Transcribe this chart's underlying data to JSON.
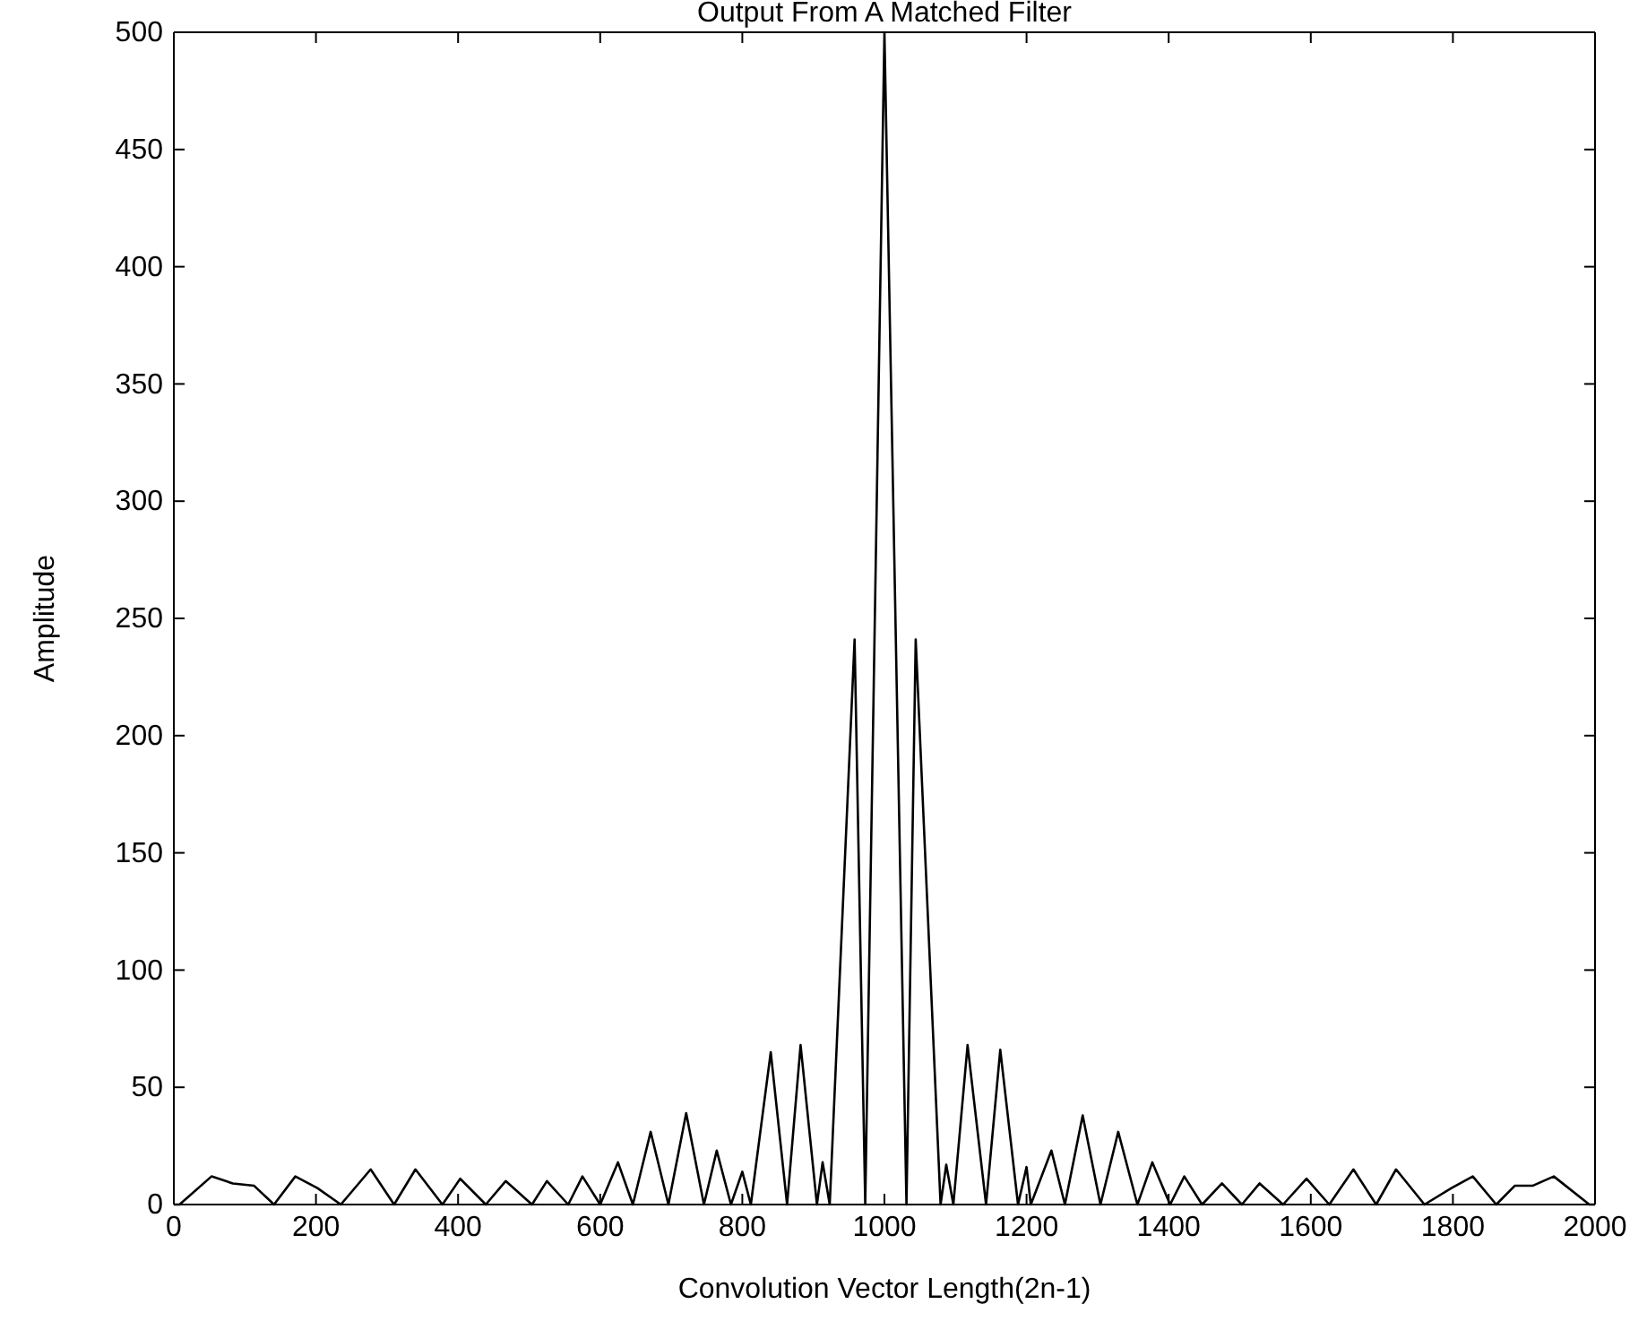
{
  "chart_data": {
    "type": "line",
    "title": "Output From A Matched Filter",
    "xlabel": "Convolution Vector Length(2n-1)",
    "ylabel": "Amplitude",
    "xlim": [
      0,
      2000
    ],
    "xticks": [
      0,
      200,
      400,
      600,
      800,
      1000,
      1200,
      1400,
      1600,
      1800,
      2000
    ],
    "ylim": [
      0,
      500
    ],
    "yticks": [
      0,
      50,
      100,
      150,
      200,
      250,
      300,
      350,
      400,
      450,
      500
    ],
    "grid": false,
    "series": [
      {
        "color": "#000000",
        "x": [
          0,
          8,
          53,
          83,
          113,
          141,
          171,
          202,
          235,
          277,
          310,
          340,
          378,
          403,
          439,
          467,
          504,
          525,
          555,
          575,
          600,
          625,
          646,
          671,
          696,
          721,
          746,
          764,
          784,
          800,
          812,
          840,
          863,
          882,
          905,
          913,
          923,
          958,
          973,
          1000,
          1031,
          1044,
          1079,
          1087,
          1097,
          1117,
          1143,
          1163,
          1188,
          1200,
          1206,
          1235,
          1254,
          1279,
          1304,
          1329,
          1356,
          1377,
          1402,
          1422,
          1447,
          1475,
          1503,
          1528,
          1561,
          1594,
          1626,
          1660,
          1692,
          1720,
          1760,
          1798,
          1828,
          1861,
          1887,
          1912,
          1942,
          1992,
          2000
        ],
        "values": [
          0,
          0,
          12,
          9,
          8,
          0,
          12,
          7,
          0,
          15,
          0,
          15,
          0,
          11,
          0,
          10,
          0,
          10,
          0,
          12,
          0,
          18,
          0,
          31,
          0,
          39,
          0,
          23,
          0,
          14,
          0,
          65,
          0,
          68,
          0,
          18,
          0,
          241,
          0,
          500,
          0,
          241,
          0,
          17,
          0,
          68,
          0,
          66,
          0,
          16,
          0,
          23,
          0,
          38,
          0,
          31,
          0,
          18,
          0,
          12,
          0,
          9,
          0,
          9,
          0,
          11,
          0,
          15,
          0,
          15,
          0,
          7,
          12,
          0,
          8,
          8,
          12,
          0,
          0
        ]
      }
    ]
  }
}
